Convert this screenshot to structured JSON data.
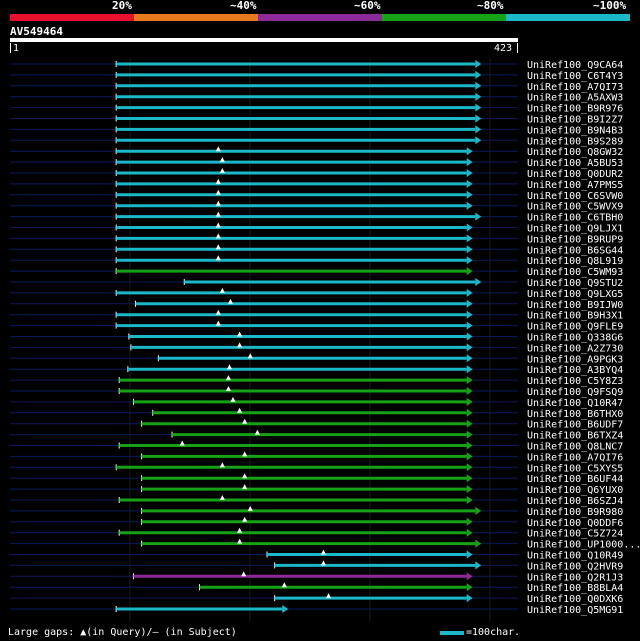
{
  "legend": {
    "colors": [
      "#e8102c",
      "#e87a1e",
      "#8c2a9a",
      "#16a216",
      "#1ab8c8"
    ],
    "labels": [
      "20%",
      "~40%",
      "~60%",
      "~80%",
      "~100%"
    ]
  },
  "query": {
    "name": "AV549464",
    "start": "1",
    "end": "423"
  },
  "hits": [
    {
      "name": "UniRef100_Q9CA64",
      "color": "cyan",
      "from": 0.209,
      "to": 0.916,
      "tri": null
    },
    {
      "name": "UniRef100_C6T4Y3",
      "color": "cyan",
      "from": 0.209,
      "to": 0.916,
      "tri": null
    },
    {
      "name": "UniRef100_A7QI73",
      "color": "cyan",
      "from": 0.209,
      "to": 0.916,
      "tri": null
    },
    {
      "name": "UniRef100_A5AXW3",
      "color": "cyan",
      "from": 0.209,
      "to": 0.916,
      "tri": null
    },
    {
      "name": "UniRef100_B9R976",
      "color": "cyan",
      "from": 0.209,
      "to": 0.916,
      "tri": null
    },
    {
      "name": "UniRef100_B9I2Z7",
      "color": "cyan",
      "from": 0.209,
      "to": 0.916,
      "tri": null
    },
    {
      "name": "UniRef100_B9N4B3",
      "color": "cyan",
      "from": 0.209,
      "to": 0.916,
      "tri": null
    },
    {
      "name": "UniRef100_B9S289",
      "color": "cyan",
      "from": 0.209,
      "to": 0.916,
      "tri": null
    },
    {
      "name": "UniRef100_Q8GW32",
      "color": "cyan",
      "from": 0.209,
      "to": 0.899,
      "tri": 0.41
    },
    {
      "name": "UniRef100_A5BU53",
      "color": "cyan",
      "from": 0.209,
      "to": 0.899,
      "tri": 0.418
    },
    {
      "name": "UniRef100_Q0DUR2",
      "color": "cyan",
      "from": 0.209,
      "to": 0.899,
      "tri": 0.418
    },
    {
      "name": "UniRef100_A7PMS5",
      "color": "cyan",
      "from": 0.209,
      "to": 0.899,
      "tri": 0.41
    },
    {
      "name": "UniRef100_C6SVW0",
      "color": "cyan",
      "from": 0.209,
      "to": 0.899,
      "tri": 0.41
    },
    {
      "name": "UniRef100_C5WVX9",
      "color": "cyan",
      "from": 0.209,
      "to": 0.899,
      "tri": 0.41
    },
    {
      "name": "UniRef100_C6TBH0",
      "color": "cyan",
      "from": 0.209,
      "to": 0.916,
      "tri": 0.41
    },
    {
      "name": "UniRef100_Q9LJX1",
      "color": "cyan",
      "from": 0.209,
      "to": 0.899,
      "tri": 0.41
    },
    {
      "name": "UniRef100_B9RUP9",
      "color": "cyan",
      "from": 0.209,
      "to": 0.899,
      "tri": 0.41
    },
    {
      "name": "UniRef100_B6SG44",
      "color": "cyan",
      "from": 0.209,
      "to": 0.899,
      "tri": 0.41
    },
    {
      "name": "UniRef100_Q8L919",
      "color": "cyan",
      "from": 0.209,
      "to": 0.899,
      "tri": 0.41
    },
    {
      "name": "UniRef100_C5WM93",
      "color": "green",
      "from": 0.209,
      "to": 0.899,
      "tri": null
    },
    {
      "name": "UniRef100_Q9STU2",
      "color": "cyan",
      "from": 0.343,
      "to": 0.916,
      "tri": null
    },
    {
      "name": "UniRef100_Q9LXG5",
      "color": "cyan",
      "from": 0.209,
      "to": 0.899,
      "tri": 0.418
    },
    {
      "name": "UniRef100_B9IJW0",
      "color": "cyan",
      "from": 0.247,
      "to": 0.899,
      "tri": 0.434
    },
    {
      "name": "UniRef100_B9H3X1",
      "color": "cyan",
      "from": 0.209,
      "to": 0.899,
      "tri": 0.41
    },
    {
      "name": "UniRef100_Q9FLE9",
      "color": "cyan",
      "from": 0.209,
      "to": 0.899,
      "tri": 0.41
    },
    {
      "name": "UniRef100_Q338G6",
      "color": "cyan",
      "from": 0.234,
      "to": 0.899,
      "tri": 0.452
    },
    {
      "name": "UniRef100_A2Z730",
      "color": "cyan",
      "from": 0.238,
      "to": 0.899,
      "tri": 0.452
    },
    {
      "name": "UniRef100_A9PGK3",
      "color": "cyan",
      "from": 0.292,
      "to": 0.899,
      "tri": 0.473
    },
    {
      "name": "UniRef100_A3BYQ4",
      "color": "cyan",
      "from": 0.232,
      "to": 0.899,
      "tri": 0.432
    },
    {
      "name": "UniRef100_C5Y8Z3",
      "color": "green",
      "from": 0.215,
      "to": 0.899,
      "tri": 0.43
    },
    {
      "name": "UniRef100_Q9FSQ9",
      "color": "green",
      "from": 0.215,
      "to": 0.899,
      "tri": 0.43
    },
    {
      "name": "UniRef100_Q10R47",
      "color": "green",
      "from": 0.243,
      "to": 0.899,
      "tri": 0.439
    },
    {
      "name": "UniRef100_B6THX0",
      "color": "green",
      "from": 0.281,
      "to": 0.899,
      "tri": 0.452
    },
    {
      "name": "UniRef100_B6UDF7",
      "color": "green",
      "from": 0.259,
      "to": 0.899,
      "tri": 0.462
    },
    {
      "name": "UniRef100_B6TXZ4",
      "color": "green",
      "from": 0.319,
      "to": 0.899,
      "tri": 0.487
    },
    {
      "name": "UniRef100_Q8LNC7",
      "color": "green",
      "from": 0.215,
      "to": 0.899,
      "tri": 0.339
    },
    {
      "name": "UniRef100_A7QI76",
      "color": "green",
      "from": 0.259,
      "to": 0.899,
      "tri": 0.462
    },
    {
      "name": "UniRef100_C5XYS5",
      "color": "green",
      "from": 0.209,
      "to": 0.899,
      "tri": 0.418
    },
    {
      "name": "UniRef100_B6UF44",
      "color": "green",
      "from": 0.259,
      "to": 0.899,
      "tri": 0.462
    },
    {
      "name": "UniRef100_Q6YUX0",
      "color": "green",
      "from": 0.259,
      "to": 0.899,
      "tri": 0.462
    },
    {
      "name": "UniRef100_B6SZJ4",
      "color": "green",
      "from": 0.215,
      "to": 0.899,
      "tri": 0.418
    },
    {
      "name": "UniRef100_B9R980",
      "color": "green",
      "from": 0.259,
      "to": 0.916,
      "tri": 0.473
    },
    {
      "name": "UniRef100_Q0DDF6",
      "color": "green",
      "from": 0.259,
      "to": 0.899,
      "tri": 0.462
    },
    {
      "name": "UniRef100_C5Z724",
      "color": "green",
      "from": 0.215,
      "to": 0.899,
      "tri": 0.452
    },
    {
      "name": "UniRef100_UP1000...",
      "color": "green",
      "from": 0.259,
      "to": 0.916,
      "tri": 0.452
    },
    {
      "name": "UniRef100_Q10R49",
      "color": "cyan",
      "from": 0.506,
      "to": 0.899,
      "tri": 0.617
    },
    {
      "name": "UniRef100_Q2HVR9",
      "color": "cyan",
      "from": 0.521,
      "to": 0.916,
      "tri": 0.617
    },
    {
      "name": "UniRef100_Q2R1J3",
      "color": "purple",
      "from": 0.243,
      "to": 0.899,
      "tri": 0.46
    },
    {
      "name": "UniRef100_B8BLA4",
      "color": "green",
      "from": 0.373,
      "to": 0.899,
      "tri": 0.54
    },
    {
      "name": "UniRef100_Q0DXK6",
      "color": "cyan",
      "from": 0.521,
      "to": 0.899,
      "tri": 0.627
    },
    {
      "name": "UniRef100_Q5MG91",
      "color": "cyan",
      "from": 0.209,
      "to": 0.536,
      "tri": null
    }
  ],
  "footer": {
    "left": "Large gaps: ▲(in Query)/— (in Subject)",
    "scale_label": "=100char."
  }
}
